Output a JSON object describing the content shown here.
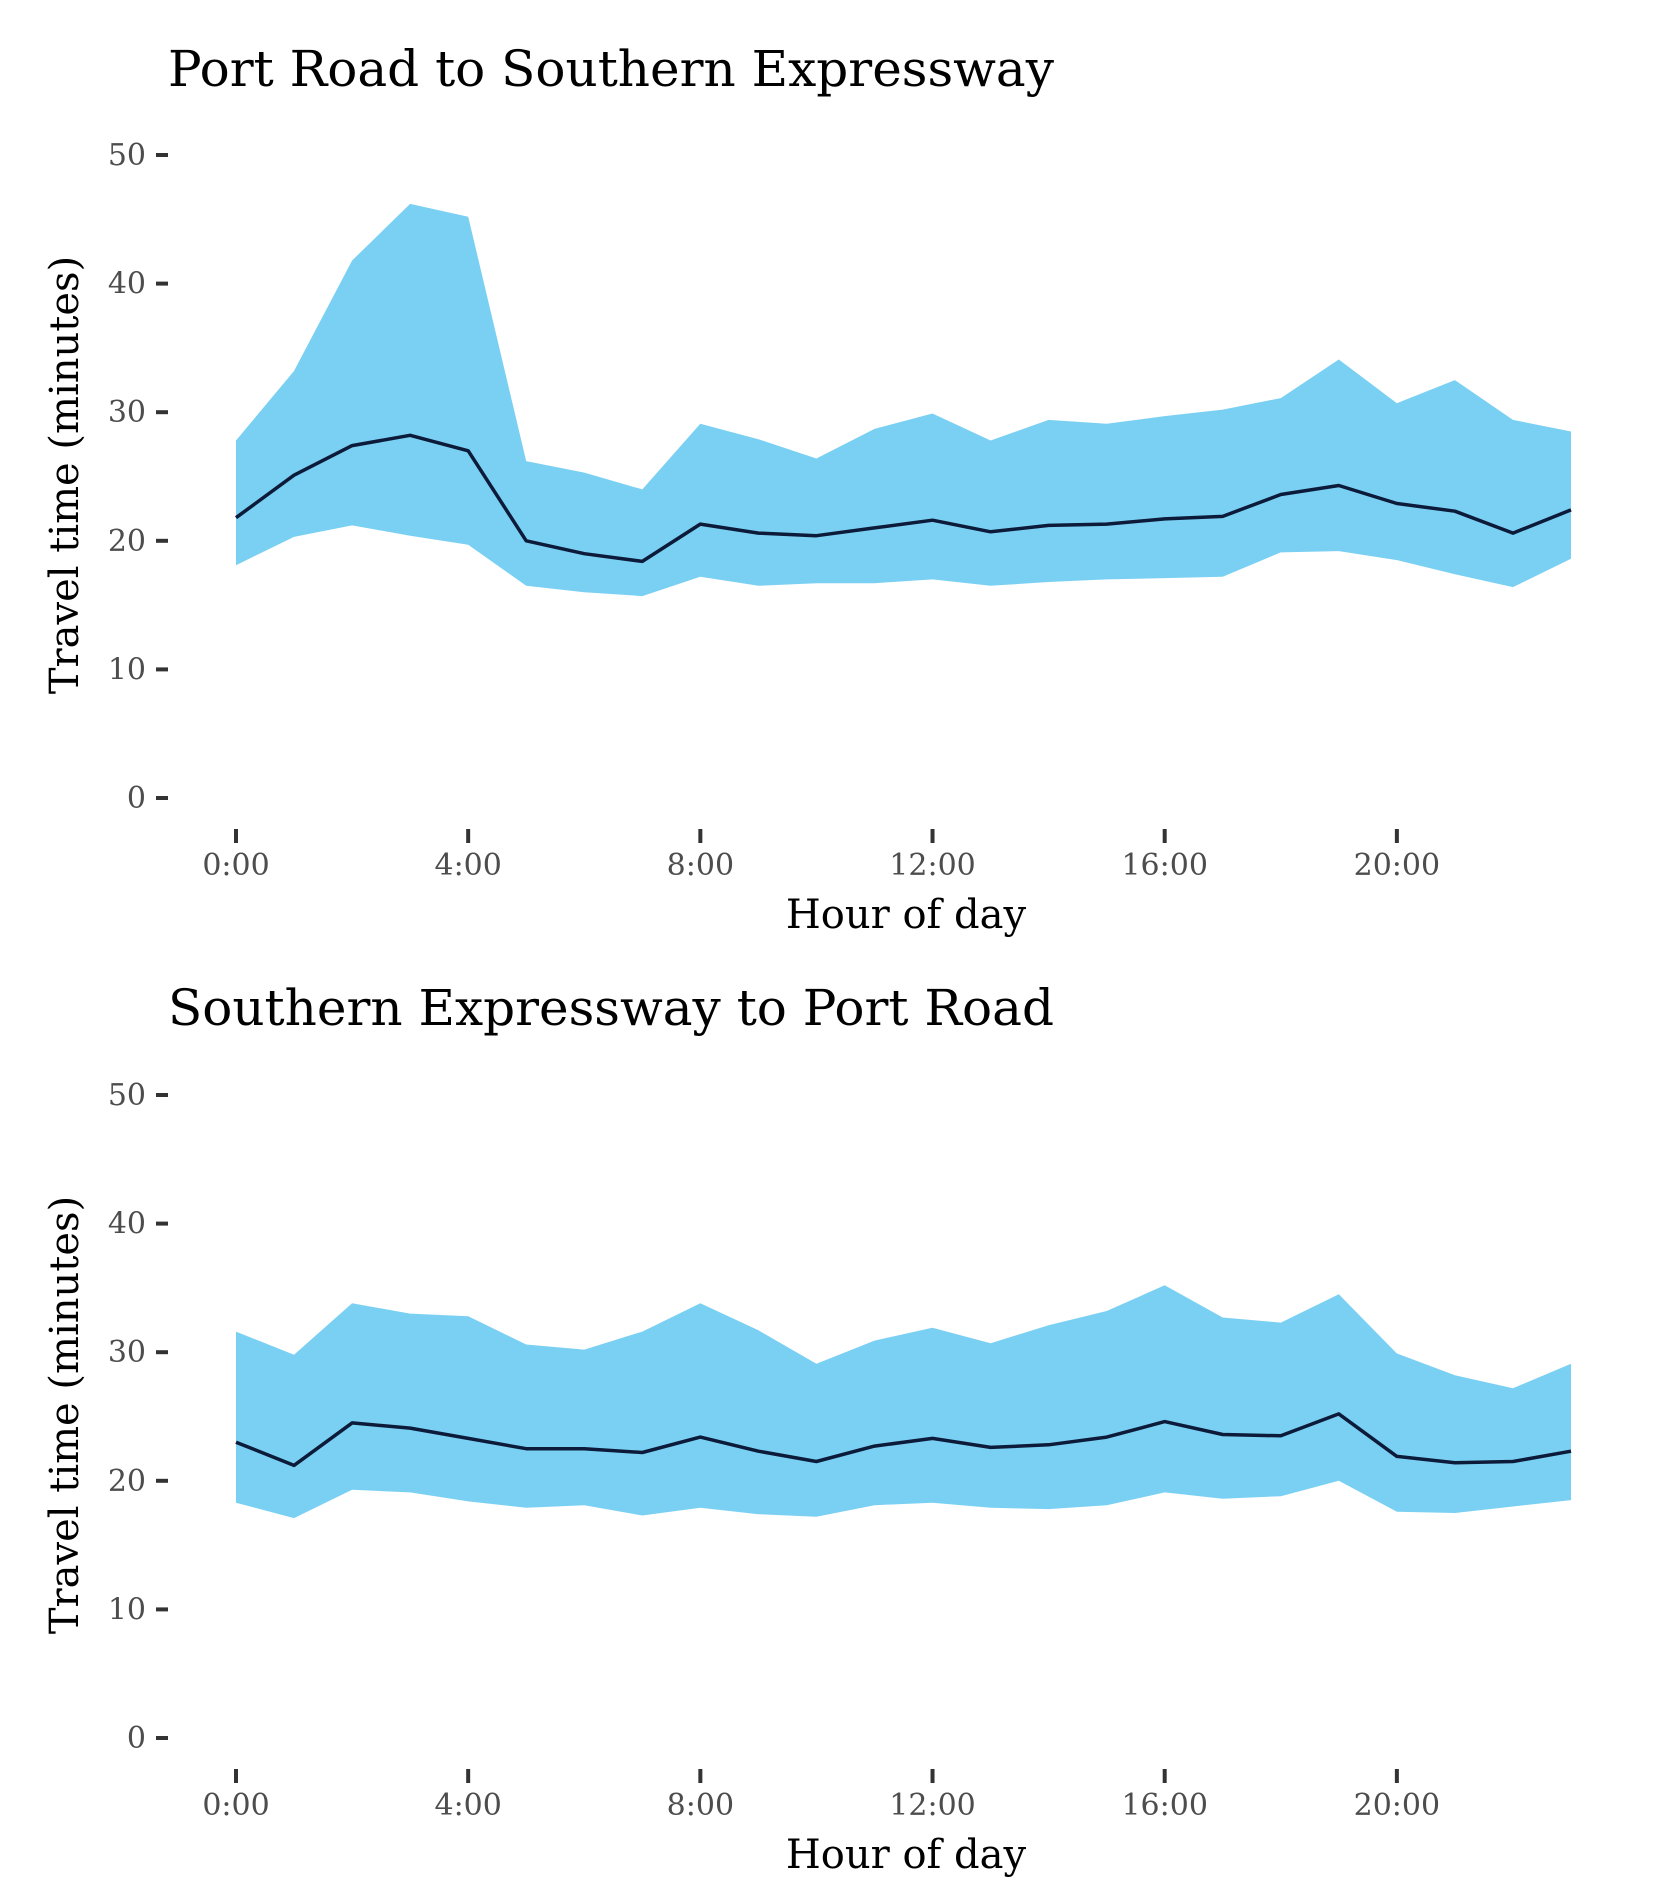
{
  "colors": {
    "band": "#7ad0f3",
    "line": "#0d1b3a",
    "tick_text": "#4d4d4d"
  },
  "chart_data": [
    {
      "type": "area",
      "title": "Port Road to Southern Expressway",
      "xlabel": "Hour of day",
      "ylabel": "Travel time (minutes)",
      "xlim": [
        0,
        23
      ],
      "ylim": [
        0,
        50
      ],
      "x_ticks": [
        0,
        4,
        8,
        12,
        16,
        20
      ],
      "x_tick_labels": [
        "0:00",
        "4:00",
        "8:00",
        "12:00",
        "16:00",
        "20:00"
      ],
      "y_ticks": [
        0,
        10,
        20,
        30,
        40,
        50
      ],
      "y_tick_labels": [
        "0",
        "10",
        "20",
        "30",
        "40",
        "50"
      ],
      "grid": false,
      "x": [
        0,
        1,
        2,
        3,
        4,
        5,
        6,
        7,
        8,
        9,
        10,
        11,
        12,
        13,
        14,
        15,
        16,
        17,
        18,
        19,
        20,
        21,
        22,
        23
      ],
      "median": [
        21.8,
        25.1,
        27.4,
        28.2,
        27.0,
        20.0,
        19.0,
        18.4,
        21.3,
        20.6,
        20.4,
        21.0,
        21.6,
        20.7,
        21.2,
        21.3,
        21.7,
        21.9,
        23.6,
        24.3,
        22.9,
        22.3,
        20.6,
        22.4
      ],
      "upper": [
        27.8,
        33.2,
        41.8,
        46.2,
        45.2,
        26.2,
        25.3,
        24.0,
        29.1,
        27.9,
        26.4,
        28.7,
        29.9,
        27.8,
        29.4,
        29.1,
        29.7,
        30.2,
        31.1,
        34.1,
        30.7,
        32.5,
        29.4,
        28.5
      ],
      "lower": [
        18.1,
        20.3,
        21.2,
        20.4,
        19.7,
        16.5,
        16.0,
        15.7,
        17.2,
        16.5,
        16.7,
        16.7,
        17.0,
        16.5,
        16.8,
        17.0,
        17.1,
        17.2,
        19.1,
        19.2,
        18.5,
        17.4,
        16.4,
        18.6
      ]
    },
    {
      "type": "area",
      "title": "Southern Expressway to Port Road",
      "xlabel": "Hour of day",
      "ylabel": "Travel time (minutes)",
      "xlim": [
        0,
        23
      ],
      "ylim": [
        0,
        50
      ],
      "x_ticks": [
        0,
        4,
        8,
        12,
        16,
        20
      ],
      "x_tick_labels": [
        "0:00",
        "4:00",
        "8:00",
        "12:00",
        "16:00",
        "20:00"
      ],
      "y_ticks": [
        0,
        10,
        20,
        30,
        40,
        50
      ],
      "y_tick_labels": [
        "0",
        "10",
        "20",
        "30",
        "40",
        "50"
      ],
      "grid": false,
      "x": [
        0,
        1,
        2,
        3,
        4,
        5,
        6,
        7,
        8,
        9,
        10,
        11,
        12,
        13,
        14,
        15,
        16,
        17,
        18,
        19,
        20,
        21,
        22,
        23
      ],
      "median": [
        23.0,
        21.2,
        24.5,
        24.1,
        23.3,
        22.5,
        22.5,
        22.2,
        23.4,
        22.3,
        21.5,
        22.7,
        23.3,
        22.6,
        22.8,
        23.4,
        24.6,
        23.6,
        23.5,
        25.2,
        21.9,
        21.4,
        21.5,
        22.3
      ],
      "upper": [
        31.6,
        29.8,
        33.8,
        33.0,
        32.8,
        30.6,
        30.2,
        31.6,
        33.8,
        31.7,
        29.1,
        30.9,
        31.9,
        30.7,
        32.1,
        33.2,
        35.2,
        32.7,
        32.3,
        34.5,
        29.9,
        28.2,
        27.2,
        29.1
      ],
      "lower": [
        18.3,
        17.1,
        19.3,
        19.1,
        18.4,
        17.9,
        18.1,
        17.3,
        17.9,
        17.4,
        17.2,
        18.1,
        18.3,
        17.9,
        17.8,
        18.1,
        19.1,
        18.6,
        18.8,
        20.0,
        17.6,
        17.5,
        18.0,
        18.5
      ]
    }
  ]
}
